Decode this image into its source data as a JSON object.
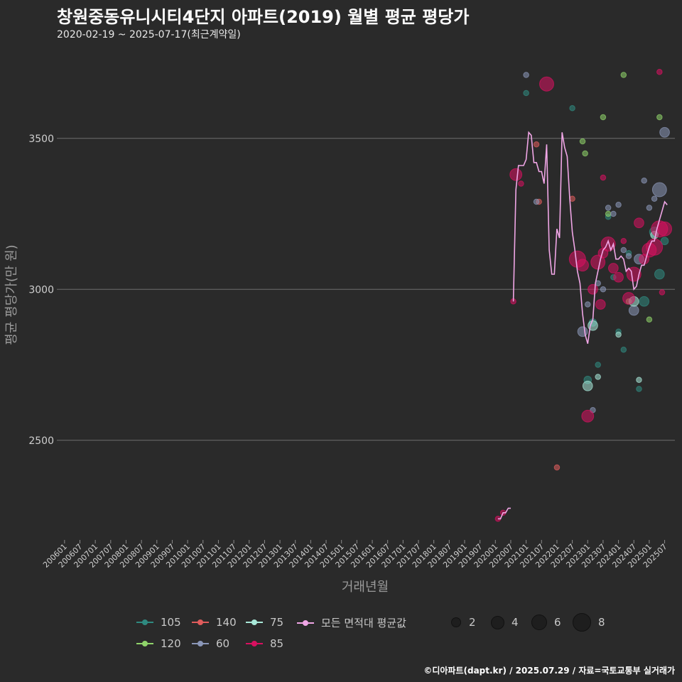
{
  "title": "창원중동유니시티4단지 아파트(2019) 월별 평균 평당가",
  "subtitle": "2020-02-19 ~ 2025-07-17(최근계약일)",
  "footer": "©디아파트(dapt.kr) / 2025.07.29 / 자료=국토교통부 실거래가",
  "chart_data": {
    "type": "scatter",
    "xlabel": "거래년월",
    "ylabel": "평균 평당가(만 원)",
    "x_ticks": [
      "200601",
      "200607",
      "200701",
      "200707",
      "200801",
      "200807",
      "200901",
      "200907",
      "201001",
      "201007",
      "201101",
      "201107",
      "201201",
      "201207",
      "201301",
      "201307",
      "201401",
      "201407",
      "201501",
      "201507",
      "201601",
      "201607",
      "201701",
      "201707",
      "201801",
      "201807",
      "201901",
      "201907",
      "202001",
      "202007",
      "202101",
      "202107",
      "202201",
      "202207",
      "202301",
      "202307",
      "202401",
      "202407",
      "202501",
      "202507"
    ],
    "y_ticks": [
      2500,
      3000,
      3500
    ],
    "ylim": [
      2170,
      3770
    ],
    "xlim": [
      "2005-10",
      "2025-11"
    ],
    "grid": "horizontal",
    "legend_position": "bottom",
    "colors": {
      "105": "#2f8a80",
      "120": "#8fd36a",
      "140": "#e05c5c",
      "60": "#8b97b8",
      "75": "#a8e8d8",
      "85": "#d81060",
      "avg": "#f0a6e6"
    },
    "legend_series": [
      "105",
      "120",
      "140",
      "60",
      "75",
      "85"
    ],
    "legend_avg": "모든 면적대 평균값",
    "size_legend": [
      2,
      4,
      6,
      8
    ],
    "series": [
      {
        "name": "105",
        "points": [
          [
            "2021-01",
            3650,
            1
          ],
          [
            "2022-07",
            3600,
            1
          ],
          [
            "2023-01",
            2700,
            2
          ],
          [
            "2023-03",
            2890,
            2
          ],
          [
            "2023-05",
            2750,
            1
          ],
          [
            "2023-09",
            3240,
            1
          ],
          [
            "2023-11",
            3040,
            1
          ],
          [
            "2024-01",
            2860,
            1
          ],
          [
            "2024-03",
            2800,
            1
          ],
          [
            "2024-05",
            3120,
            1
          ],
          [
            "2024-09",
            2670,
            1
          ],
          [
            "2024-11",
            2960,
            3
          ],
          [
            "2025-03",
            3190,
            3
          ],
          [
            "2025-05",
            3050,
            3
          ],
          [
            "2025-07",
            3160,
            2
          ]
        ]
      },
      {
        "name": "120",
        "points": [
          [
            "2022-11",
            3490,
            1
          ],
          [
            "2022-12",
            3450,
            1
          ],
          [
            "2023-07",
            3570,
            1
          ],
          [
            "2023-09",
            3250,
            1
          ],
          [
            "2024-03",
            3710,
            1
          ],
          [
            "2024-05",
            2960,
            1
          ],
          [
            "2025-01",
            2900,
            1
          ],
          [
            "2025-05",
            3570,
            1
          ]
        ]
      },
      {
        "name": "140",
        "points": [
          [
            "2021-05",
            3480,
            1
          ],
          [
            "2021-06",
            3290,
            1
          ],
          [
            "2022-01",
            2410,
            1
          ],
          [
            "2022-07",
            3300,
            1
          ]
        ]
      },
      {
        "name": "60",
        "points": [
          [
            "2021-01",
            3710,
            1
          ],
          [
            "2021-05",
            3290,
            1
          ],
          [
            "2022-11",
            2860,
            3
          ],
          [
            "2023-01",
            2950,
            1
          ],
          [
            "2023-03",
            2600,
            1
          ],
          [
            "2023-05",
            3020,
            1
          ],
          [
            "2023-07",
            3000,
            1
          ],
          [
            "2023-09",
            3270,
            1
          ],
          [
            "2023-11",
            3250,
            1
          ],
          [
            "2024-01",
            3280,
            1
          ],
          [
            "2024-03",
            3130,
            1
          ],
          [
            "2024-05",
            3110,
            1
          ],
          [
            "2024-07",
            2930,
            3
          ],
          [
            "2024-09",
            3100,
            3
          ],
          [
            "2024-11",
            3360,
            1
          ],
          [
            "2025-01",
            3270,
            1
          ],
          [
            "2025-03",
            3300,
            1
          ],
          [
            "2025-05",
            3330,
            5
          ],
          [
            "2025-07",
            3520,
            3
          ]
        ]
      },
      {
        "name": "75",
        "points": [
          [
            "2023-01",
            2680,
            3
          ],
          [
            "2023-03",
            2880,
            3
          ],
          [
            "2023-05",
            2710,
            1
          ],
          [
            "2024-01",
            2850,
            1
          ],
          [
            "2024-07",
            2960,
            3
          ],
          [
            "2024-09",
            2700,
            1
          ],
          [
            "2025-03",
            3180,
            2
          ]
        ]
      },
      {
        "name": "85",
        "points": [
          [
            "2020-02",
            2240,
            1
          ],
          [
            "2020-04",
            2260,
            1
          ],
          [
            "2020-08",
            2960,
            1
          ],
          [
            "2020-09",
            3380,
            4
          ],
          [
            "2020-11",
            3350,
            1
          ],
          [
            "2021-09",
            3680,
            5
          ],
          [
            "2022-09",
            3100,
            6
          ],
          [
            "2022-11",
            3080,
            4
          ],
          [
            "2023-01",
            2580,
            4
          ],
          [
            "2023-03",
            3000,
            3
          ],
          [
            "2023-05",
            3090,
            5
          ],
          [
            "2023-06",
            2950,
            3
          ],
          [
            "2023-07",
            3120,
            3
          ],
          [
            "2023-09",
            3150,
            5
          ],
          [
            "2023-11",
            3070,
            3
          ],
          [
            "2024-01",
            3040,
            3
          ],
          [
            "2024-03",
            3160,
            1
          ],
          [
            "2024-05",
            2970,
            4
          ],
          [
            "2024-07",
            3050,
            5
          ],
          [
            "2024-09",
            3220,
            3
          ],
          [
            "2024-11",
            3100,
            3
          ],
          [
            "2025-01",
            3130,
            5
          ],
          [
            "2025-03",
            3140,
            6
          ],
          [
            "2025-05",
            3200,
            6
          ],
          [
            "2025-06",
            2990,
            1
          ],
          [
            "2025-07",
            3200,
            5
          ],
          [
            "2025-05",
            3720,
            1
          ],
          [
            "2023-07",
            3370,
            1
          ]
        ]
      },
      {
        "name": "모든 면적대 평균값",
        "line": [
          [
            "2020-02",
            2240
          ],
          [
            "2020-03",
            2240
          ],
          [
            "2020-04",
            2260
          ],
          [
            "2020-05",
            2260
          ],
          [
            "2020-06",
            2275
          ],
          [
            "2020-07",
            2275
          ],
          [
            "2020-08",
            2960
          ],
          [
            "2020-09",
            3330
          ],
          [
            "2020-10",
            3410
          ],
          [
            "2020-11",
            3410
          ],
          [
            "2020-12",
            3410
          ],
          [
            "2021-01",
            3430
          ],
          [
            "2021-02",
            3520
          ],
          [
            "2021-03",
            3510
          ],
          [
            "2021-04",
            3420
          ],
          [
            "2021-05",
            3420
          ],
          [
            "2021-06",
            3390
          ],
          [
            "2021-07",
            3390
          ],
          [
            "2021-08",
            3350
          ],
          [
            "2021-09",
            3480
          ],
          [
            "2021-10",
            3130
          ],
          [
            "2021-11",
            3050
          ],
          [
            "2021-12",
            3050
          ],
          [
            "2022-01",
            3200
          ],
          [
            "2022-02",
            3170
          ],
          [
            "2022-03",
            3520
          ],
          [
            "2022-04",
            3470
          ],
          [
            "2022-05",
            3440
          ],
          [
            "2022-06",
            3300
          ],
          [
            "2022-07",
            3190
          ],
          [
            "2022-08",
            3130
          ],
          [
            "2022-09",
            3060
          ],
          [
            "2022-10",
            3020
          ],
          [
            "2022-11",
            2920
          ],
          [
            "2022-12",
            2850
          ],
          [
            "2023-01",
            2820
          ],
          [
            "2023-02",
            2880
          ],
          [
            "2023-03",
            2900
          ],
          [
            "2023-04",
            3020
          ],
          [
            "2023-05",
            3060
          ],
          [
            "2023-06",
            3100
          ],
          [
            "2023-07",
            3130
          ],
          [
            "2023-08",
            3140
          ],
          [
            "2023-09",
            3160
          ],
          [
            "2023-10",
            3130
          ],
          [
            "2023-11",
            3150
          ],
          [
            "2023-12",
            3100
          ],
          [
            "2024-01",
            3100
          ],
          [
            "2024-02",
            3110
          ],
          [
            "2024-03",
            3100
          ],
          [
            "2024-04",
            3060
          ],
          [
            "2024-05",
            3070
          ],
          [
            "2024-06",
            3060
          ],
          [
            "2024-07",
            3000
          ],
          [
            "2024-08",
            3010
          ],
          [
            "2024-09",
            3050
          ],
          [
            "2024-10",
            3080
          ],
          [
            "2024-11",
            3080
          ],
          [
            "2024-12",
            3110
          ],
          [
            "2025-01",
            3140
          ],
          [
            "2025-02",
            3160
          ],
          [
            "2025-03",
            3160
          ],
          [
            "2025-04",
            3200
          ],
          [
            "2025-05",
            3230
          ],
          [
            "2025-06",
            3260
          ],
          [
            "2025-07",
            3290
          ],
          [
            "2025-08",
            3280
          ]
        ]
      }
    ]
  }
}
